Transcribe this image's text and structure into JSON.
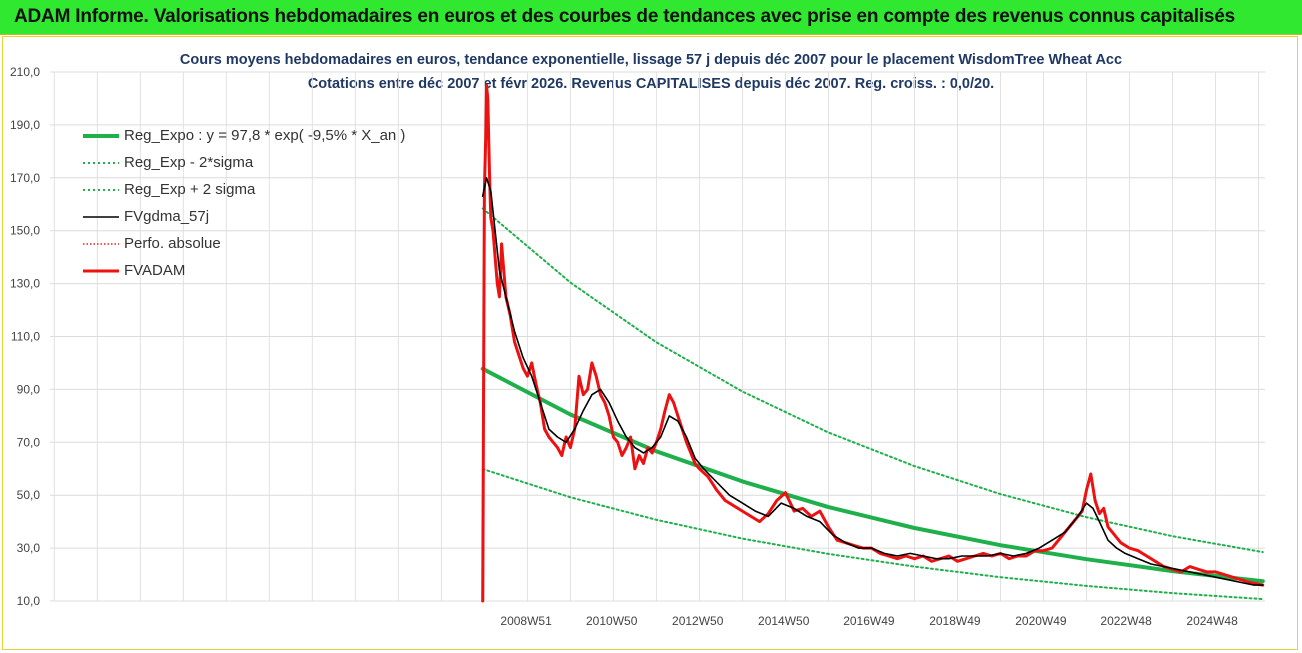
{
  "banner": {
    "title": "ADAM Informe. Valorisations hebdomadaires en euros et des courbes de tendances avec prise en compte des revenus connus capitalisés"
  },
  "chart_data": {
    "type": "line",
    "title": "Cours moyens hebdomadaires en euros, tendance exponentielle, lissage 57 j depuis déc 2007 pour le placement WisdomTree Wheat Acc",
    "subtitle": "Cotations entre déc 2007 et févr 2026. Revenus CAPITALISES depuis déc 2007. Reg. croiss. : 0,0/20.",
    "xlabel": "",
    "ylabel": "",
    "ylim": [
      10,
      210
    ],
    "yticks": [
      "10,0",
      "30,0",
      "50,0",
      "70,0",
      "90,0",
      "110,0",
      "130,0",
      "150,0",
      "170,0",
      "190,0",
      "210,0"
    ],
    "xticks": [
      {
        "label": "2008W51",
        "year": 2008.97
      },
      {
        "label": "2010W50",
        "year": 2010.96
      },
      {
        "label": "2012W50",
        "year": 2012.96
      },
      {
        "label": "2014W50",
        "year": 2014.96
      },
      {
        "label": "2016W49",
        "year": 2016.94
      },
      {
        "label": "2018W49",
        "year": 2018.94
      },
      {
        "label": "2020W49",
        "year": 2020.94
      },
      {
        "label": "2022W48",
        "year": 2022.92
      },
      {
        "label": "2024W48",
        "year": 2024.92
      }
    ],
    "xlim": [
      1997.9,
      2026.15
    ],
    "grid": true,
    "legend_position": "top-left",
    "series": [
      {
        "name": "Reg_Expo : y = 97,8 * exp( -9,5% *  X_an )",
        "color": "#1fb04b",
        "style": "solid",
        "x": [
          2007.96,
          2010,
          2012,
          2014,
          2016,
          2018,
          2020,
          2022,
          2024,
          2026.1
        ],
        "values": [
          97.8,
          80.5,
          66.6,
          55.2,
          45.5,
          37.6,
          31.1,
          25.8,
          21.3,
          17.5
        ]
      },
      {
        "name": "Reg_Exp - 2*sigma",
        "color": "#1fb04b",
        "style": "dotted",
        "x": [
          2007.96,
          2010,
          2012,
          2014,
          2016,
          2018,
          2020,
          2022,
          2024,
          2026.1
        ],
        "values": [
          59.9,
          49.2,
          40.7,
          33.6,
          27.8,
          23.0,
          19.0,
          15.7,
          13.0,
          10.7
        ]
      },
      {
        "name": "Reg_Exp + 2 sigma",
        "color": "#1fb04b",
        "style": "dotted",
        "x": [
          2007.96,
          2010,
          2012,
          2014,
          2016,
          2018,
          2020,
          2022,
          2024,
          2026.1
        ],
        "values": [
          158.4,
          130.4,
          107.8,
          89.2,
          73.7,
          61.0,
          50.4,
          41.7,
          34.5,
          28.5
        ]
      },
      {
        "name": "FVgdma_57j",
        "color": "#000000",
        "style": "solid",
        "x": [
          2007.96,
          2008.05,
          2008.15,
          2008.25,
          2008.35,
          2008.5,
          2008.7,
          2008.9,
          2009.1,
          2009.3,
          2009.5,
          2009.7,
          2009.9,
          2010.1,
          2010.3,
          2010.5,
          2010.7,
          2010.9,
          2011.1,
          2011.3,
          2011.5,
          2011.7,
          2011.9,
          2012.1,
          2012.3,
          2012.5,
          2012.7,
          2012.9,
          2013.1,
          2013.4,
          2013.7,
          2014.0,
          2014.3,
          2014.6,
          2014.9,
          2015.2,
          2015.5,
          2015.8,
          2016.1,
          2016.4,
          2016.7,
          2017.0,
          2017.3,
          2017.6,
          2017.9,
          2018.2,
          2018.5,
          2018.8,
          2019.1,
          2019.4,
          2019.7,
          2020.0,
          2020.3,
          2020.6,
          2020.9,
          2021.2,
          2021.5,
          2021.8,
          2022.0,
          2022.15,
          2022.3,
          2022.5,
          2022.7,
          2022.9,
          2023.2,
          2023.5,
          2023.8,
          2024.1,
          2024.4,
          2024.7,
          2025.0,
          2025.3,
          2025.6,
          2025.9,
          2026.1
        ],
        "values": [
          163,
          170,
          165,
          150,
          135,
          125,
          112,
          102,
          95,
          85,
          75,
          72,
          70,
          75,
          82,
          88,
          90,
          85,
          78,
          72,
          68,
          66,
          68,
          72,
          80,
          78,
          72,
          64,
          60,
          55,
          50,
          47,
          44,
          42,
          47,
          45,
          42,
          40,
          35,
          32,
          30,
          30,
          28,
          27,
          28,
          27,
          26,
          26,
          27,
          27,
          27,
          28,
          27,
          28,
          30,
          33,
          36,
          42,
          47,
          45,
          40,
          33,
          30,
          28,
          26,
          24,
          23,
          22,
          21,
          20,
          19,
          18,
          17,
          16,
          16
        ]
      },
      {
        "name": "Perfo. absolue",
        "color": "#e02020",
        "style": "dotted",
        "x": [
          2007.96,
          2008.0,
          2008.03,
          2008.05,
          2008.08,
          2008.12,
          2008.15,
          2008.2,
          2008.25,
          2008.3,
          2008.35,
          2008.4,
          2008.5,
          2008.6,
          2008.7,
          2008.8,
          2008.9,
          2009.0,
          2009.1,
          2009.2,
          2009.3,
          2009.4,
          2009.5,
          2009.6,
          2009.7,
          2009.8,
          2009.9,
          2010.0,
          2010.1,
          2010.2,
          2010.3,
          2010.4,
          2010.5,
          2010.6,
          2010.7,
          2010.8,
          2010.9,
          2011.0,
          2011.1,
          2011.2,
          2011.3,
          2011.4,
          2011.5,
          2011.6,
          2011.7,
          2011.8,
          2011.9,
          2012.0,
          2012.1,
          2012.2,
          2012.3,
          2012.4,
          2012.5,
          2012.6,
          2012.7,
          2012.8,
          2012.9,
          2013.0,
          2013.2,
          2013.4,
          2013.6,
          2013.8,
          2014.0,
          2014.2,
          2014.4,
          2014.6,
          2014.8,
          2015.0,
          2015.2,
          2015.4,
          2015.6,
          2015.8,
          2016.0,
          2016.2,
          2016.4,
          2016.6,
          2016.8,
          2017.0,
          2017.2,
          2017.4,
          2017.6,
          2017.8,
          2018.0,
          2018.2,
          2018.4,
          2018.6,
          2018.8,
          2019.0,
          2019.2,
          2019.4,
          2019.6,
          2019.8,
          2020.0,
          2020.2,
          2020.4,
          2020.6,
          2020.8,
          2021.0,
          2021.2,
          2021.4,
          2021.6,
          2021.8,
          2021.9,
          2022.0,
          2022.1,
          2022.2,
          2022.3,
          2022.4,
          2022.5,
          2022.6,
          2022.8,
          2023.0,
          2023.2,
          2023.4,
          2023.6,
          2023.8,
          2024.0,
          2024.2,
          2024.4,
          2024.6,
          2024.8,
          2025.0,
          2025.2,
          2025.4,
          2025.6,
          2025.8,
          2026.1
        ],
        "values": [
          10,
          165,
          185,
          205,
          200,
          170,
          155,
          150,
          140,
          130,
          125,
          145,
          125,
          118,
          108,
          103,
          98,
          95,
          100,
          92,
          85,
          75,
          72,
          70,
          68,
          65,
          72,
          68,
          75,
          95,
          88,
          90,
          100,
          95,
          88,
          85,
          80,
          72,
          70,
          65,
          68,
          72,
          60,
          65,
          62,
          68,
          66,
          70,
          75,
          82,
          88,
          85,
          80,
          75,
          70,
          66,
          62,
          60,
          57,
          52,
          48,
          46,
          44,
          42,
          40,
          43,
          48,
          51,
          44,
          45,
          42,
          44,
          38,
          33,
          32,
          31,
          30,
          30,
          28,
          27,
          26,
          27,
          26,
          27,
          25,
          26,
          27,
          25,
          26,
          27,
          28,
          27,
          28,
          26,
          27,
          27,
          29,
          29,
          30,
          34,
          38,
          42,
          44,
          52,
          58,
          48,
          43,
          45,
          38,
          36,
          32,
          30,
          29,
          27,
          25,
          23,
          22,
          21,
          23,
          22,
          21,
          21,
          20,
          19,
          18,
          17,
          16
        ]
      },
      {
        "name": "FVADAM",
        "color": "#ee1111",
        "style": "solid",
        "x": [
          2007.96,
          2008.0,
          2008.03,
          2008.05,
          2008.08,
          2008.12,
          2008.15,
          2008.2,
          2008.25,
          2008.3,
          2008.35,
          2008.4,
          2008.5,
          2008.6,
          2008.7,
          2008.8,
          2008.9,
          2009.0,
          2009.1,
          2009.2,
          2009.3,
          2009.4,
          2009.5,
          2009.6,
          2009.7,
          2009.8,
          2009.9,
          2010.0,
          2010.1,
          2010.2,
          2010.3,
          2010.4,
          2010.5,
          2010.6,
          2010.7,
          2010.8,
          2010.9,
          2011.0,
          2011.1,
          2011.2,
          2011.3,
          2011.4,
          2011.5,
          2011.6,
          2011.7,
          2011.8,
          2011.9,
          2012.0,
          2012.1,
          2012.2,
          2012.3,
          2012.4,
          2012.5,
          2012.6,
          2012.7,
          2012.8,
          2012.9,
          2013.0,
          2013.2,
          2013.4,
          2013.6,
          2013.8,
          2014.0,
          2014.2,
          2014.4,
          2014.6,
          2014.8,
          2015.0,
          2015.2,
          2015.4,
          2015.6,
          2015.8,
          2016.0,
          2016.2,
          2016.4,
          2016.6,
          2016.8,
          2017.0,
          2017.2,
          2017.4,
          2017.6,
          2017.8,
          2018.0,
          2018.2,
          2018.4,
          2018.6,
          2018.8,
          2019.0,
          2019.2,
          2019.4,
          2019.6,
          2019.8,
          2020.0,
          2020.2,
          2020.4,
          2020.6,
          2020.8,
          2021.0,
          2021.2,
          2021.4,
          2021.6,
          2021.8,
          2021.9,
          2022.0,
          2022.1,
          2022.2,
          2022.3,
          2022.4,
          2022.5,
          2022.6,
          2022.8,
          2023.0,
          2023.2,
          2023.4,
          2023.6,
          2023.8,
          2024.0,
          2024.2,
          2024.4,
          2024.6,
          2024.8,
          2025.0,
          2025.2,
          2025.4,
          2025.6,
          2025.8,
          2026.1
        ],
        "values": [
          10,
          165,
          185,
          205,
          200,
          170,
          155,
          150,
          140,
          130,
          125,
          145,
          125,
          118,
          108,
          103,
          98,
          95,
          100,
          92,
          85,
          75,
          72,
          70,
          68,
          65,
          72,
          68,
          75,
          95,
          88,
          90,
          100,
          95,
          88,
          85,
          80,
          72,
          70,
          65,
          68,
          72,
          60,
          65,
          62,
          68,
          66,
          70,
          75,
          82,
          88,
          85,
          80,
          75,
          70,
          66,
          62,
          60,
          57,
          52,
          48,
          46,
          44,
          42,
          40,
          43,
          48,
          51,
          44,
          45,
          42,
          44,
          38,
          33,
          32,
          31,
          30,
          30,
          28,
          27,
          26,
          27,
          26,
          27,
          25,
          26,
          27,
          25,
          26,
          27,
          28,
          27,
          28,
          26,
          27,
          27,
          29,
          29,
          30,
          34,
          38,
          42,
          44,
          52,
          58,
          48,
          43,
          45,
          38,
          36,
          32,
          30,
          29,
          27,
          25,
          23,
          22,
          21,
          23,
          22,
          21,
          21,
          20,
          19,
          18,
          17,
          16
        ]
      }
    ]
  }
}
